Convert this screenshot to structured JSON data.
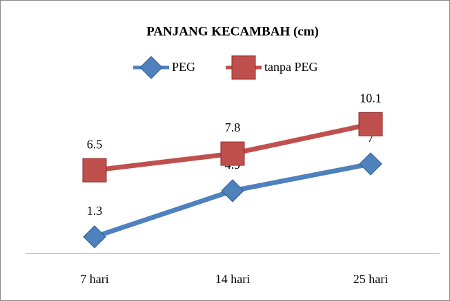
{
  "chart_data": {
    "type": "line",
    "title": "PANJANG KECAMBAH (cm)",
    "categories": [
      "7 hari",
      "14 hari",
      "25 hari"
    ],
    "series": [
      {
        "name": "PEG",
        "color": "#4f81bd",
        "marker": "diamond",
        "values": [
          1.3,
          4.9,
          7
        ]
      },
      {
        "name": "tanpa PEG",
        "color": "#c0504d",
        "marker": "square",
        "values": [
          6.5,
          7.8,
          10.1
        ]
      }
    ],
    "ylim": [
      0,
      12
    ],
    "legend": "top"
  }
}
